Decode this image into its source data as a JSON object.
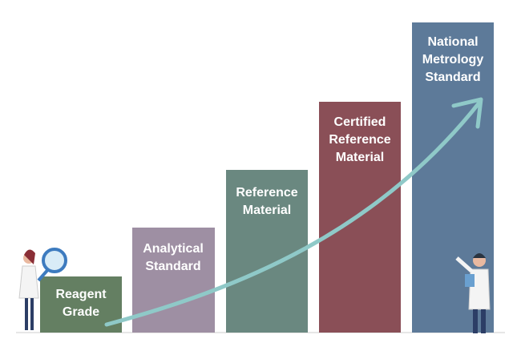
{
  "steps": [
    {
      "lines": [
        "Reagent",
        "Grade"
      ]
    },
    {
      "lines": [
        "Analytical",
        "Standard"
      ]
    },
    {
      "lines": [
        "Reference",
        "Material"
      ]
    },
    {
      "lines": [
        "Certified",
        "Reference",
        "Material"
      ]
    },
    {
      "lines": [
        "National",
        "Metrology",
        "Standard"
      ]
    }
  ]
}
